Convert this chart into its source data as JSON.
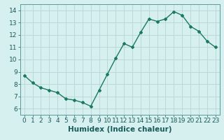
{
  "x": [
    0,
    1,
    2,
    3,
    4,
    5,
    6,
    7,
    8,
    9,
    10,
    11,
    12,
    13,
    14,
    15,
    16,
    17,
    18,
    19,
    20,
    21,
    22,
    23
  ],
  "y": [
    8.7,
    8.1,
    7.7,
    7.5,
    7.3,
    6.8,
    6.7,
    6.5,
    6.2,
    7.5,
    8.8,
    10.1,
    11.3,
    11.0,
    12.2,
    13.3,
    13.1,
    13.3,
    13.9,
    13.6,
    12.7,
    12.3,
    11.5,
    11.0
  ],
  "line_color": "#1a7a5e",
  "marker": "D",
  "markersize": 2.0,
  "linewidth": 1.0,
  "xlabel": "Humidex (Indice chaleur)",
  "xlim": [
    -0.5,
    23.5
  ],
  "ylim": [
    5.5,
    14.5
  ],
  "yticks": [
    6,
    7,
    8,
    9,
    10,
    11,
    12,
    13,
    14
  ],
  "xticks": [
    0,
    1,
    2,
    3,
    4,
    5,
    6,
    7,
    8,
    9,
    10,
    11,
    12,
    13,
    14,
    15,
    16,
    17,
    18,
    19,
    20,
    21,
    22,
    23
  ],
  "xtick_labels": [
    "0",
    "1",
    "2",
    "3",
    "4",
    "5",
    "6",
    "7",
    "8",
    "9",
    "10",
    "11",
    "12",
    "13",
    "14",
    "15",
    "16",
    "17",
    "18",
    "19",
    "20",
    "21",
    "22",
    "23"
  ],
  "bg_color": "#d6efef",
  "grid_color": "#b8d4d4",
  "tick_fontsize": 6.5,
  "xlabel_fontsize": 7.5,
  "xlabel_fontweight": "bold"
}
